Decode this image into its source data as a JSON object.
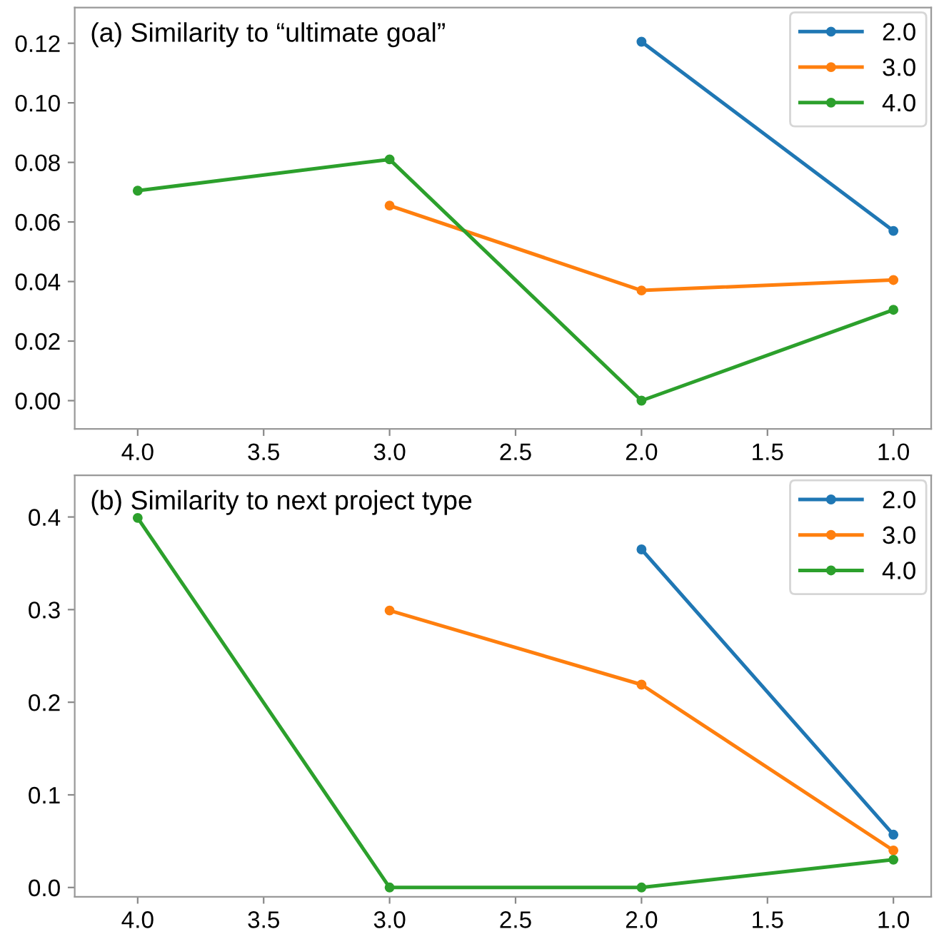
{
  "chart_data": [
    {
      "type": "line",
      "title": "(a) Similarity to “ultimate goal”",
      "xlim": [
        4.25,
        0.85
      ],
      "xticks": [
        {
          "value": 4.0,
          "label": "4.0"
        },
        {
          "value": 3.5,
          "label": "3.5"
        },
        {
          "value": 3.0,
          "label": "3.0"
        },
        {
          "value": 2.5,
          "label": "2.5"
        },
        {
          "value": 2.0,
          "label": "2.0"
        },
        {
          "value": 1.5,
          "label": "1.5"
        },
        {
          "value": 1.0,
          "label": "1.0"
        }
      ],
      "ylim": [
        -0.0095,
        0.132
      ],
      "yticks": [
        {
          "value": 0.0,
          "label": "0.00"
        },
        {
          "value": 0.02,
          "label": "0.02"
        },
        {
          "value": 0.04,
          "label": "0.04"
        },
        {
          "value": 0.06,
          "label": "0.06"
        },
        {
          "value": 0.08,
          "label": "0.08"
        },
        {
          "value": 0.1,
          "label": "0.10"
        },
        {
          "value": 0.12,
          "label": "0.12"
        }
      ],
      "legend": "top right",
      "marker": "circle",
      "grid": false,
      "series": [
        {
          "name": "2.0",
          "color": "#1f77b4",
          "x": [
            2,
            1
          ],
          "values": [
            0.1205,
            0.057
          ]
        },
        {
          "name": "3.0",
          "color": "#ff7f0e",
          "x": [
            3,
            2,
            1
          ],
          "values": [
            0.0655,
            0.037,
            0.0405
          ]
        },
        {
          "name": "4.0",
          "color": "#2ca02c",
          "x": [
            4,
            3,
            2,
            1
          ],
          "values": [
            0.0705,
            0.081,
            0.0,
            0.0305
          ]
        }
      ]
    },
    {
      "type": "line",
      "title": "(b) Similarity to next project type",
      "xlim": [
        4.25,
        0.85
      ],
      "xticks": [
        {
          "value": 4.0,
          "label": "4.0"
        },
        {
          "value": 3.5,
          "label": "3.5"
        },
        {
          "value": 3.0,
          "label": "3.0"
        },
        {
          "value": 2.5,
          "label": "2.5"
        },
        {
          "value": 2.0,
          "label": "2.0"
        },
        {
          "value": 1.5,
          "label": "1.5"
        },
        {
          "value": 1.0,
          "label": "1.0"
        }
      ],
      "ylim": [
        -0.01,
        0.445
      ],
      "yticks": [
        {
          "value": 0.0,
          "label": "0.0"
        },
        {
          "value": 0.1,
          "label": "0.1"
        },
        {
          "value": 0.2,
          "label": "0.2"
        },
        {
          "value": 0.3,
          "label": "0.3"
        },
        {
          "value": 0.4,
          "label": "0.4"
        }
      ],
      "legend": "top right",
      "marker": "circle",
      "grid": false,
      "series": [
        {
          "name": "2.0",
          "color": "#1f77b4",
          "x": [
            2,
            1
          ],
          "values": [
            0.365,
            0.057
          ]
        },
        {
          "name": "3.0",
          "color": "#ff7f0e",
          "x": [
            3,
            2,
            1
          ],
          "values": [
            0.299,
            0.219,
            0.04
          ]
        },
        {
          "name": "4.0",
          "color": "#2ca02c",
          "x": [
            4,
            3,
            2,
            1
          ],
          "values": [
            0.399,
            0.0,
            0.0,
            0.03
          ]
        }
      ]
    }
  ]
}
